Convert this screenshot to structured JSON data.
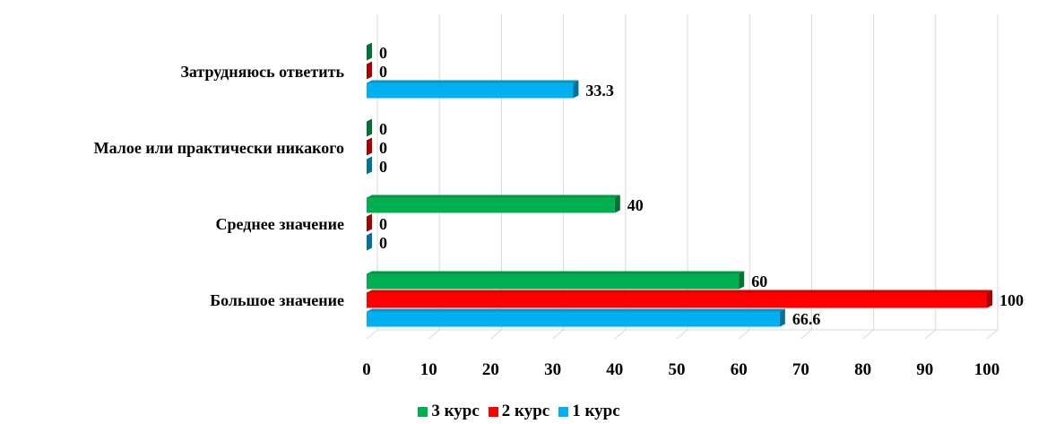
{
  "chart_data": {
    "type": "bar",
    "orientation": "horizontal",
    "categories": [
      "Большое значение",
      "Среднее значение",
      "Малое или практически никакого",
      "Затрудняюсь ответить"
    ],
    "series": [
      {
        "name": "1 курс",
        "color": "#00B0F0",
        "values": [
          66.6,
          0,
          0,
          33.3
        ]
      },
      {
        "name": "2 курс",
        "color": "#FF0000",
        "values": [
          100,
          0,
          0,
          0
        ]
      },
      {
        "name": "3 курс",
        "color": "#00B050",
        "values": [
          60,
          40,
          0,
          0
        ]
      }
    ],
    "xlim": [
      0,
      100
    ],
    "xticks": [
      "0",
      "10",
      "20",
      "30",
      "40",
      "50",
      "60",
      "70",
      "80",
      "90",
      "100"
    ],
    "grid": true,
    "legend_position": "bottom",
    "legend_order": [
      "3 курс",
      "2 курс",
      "1 курс"
    ]
  }
}
